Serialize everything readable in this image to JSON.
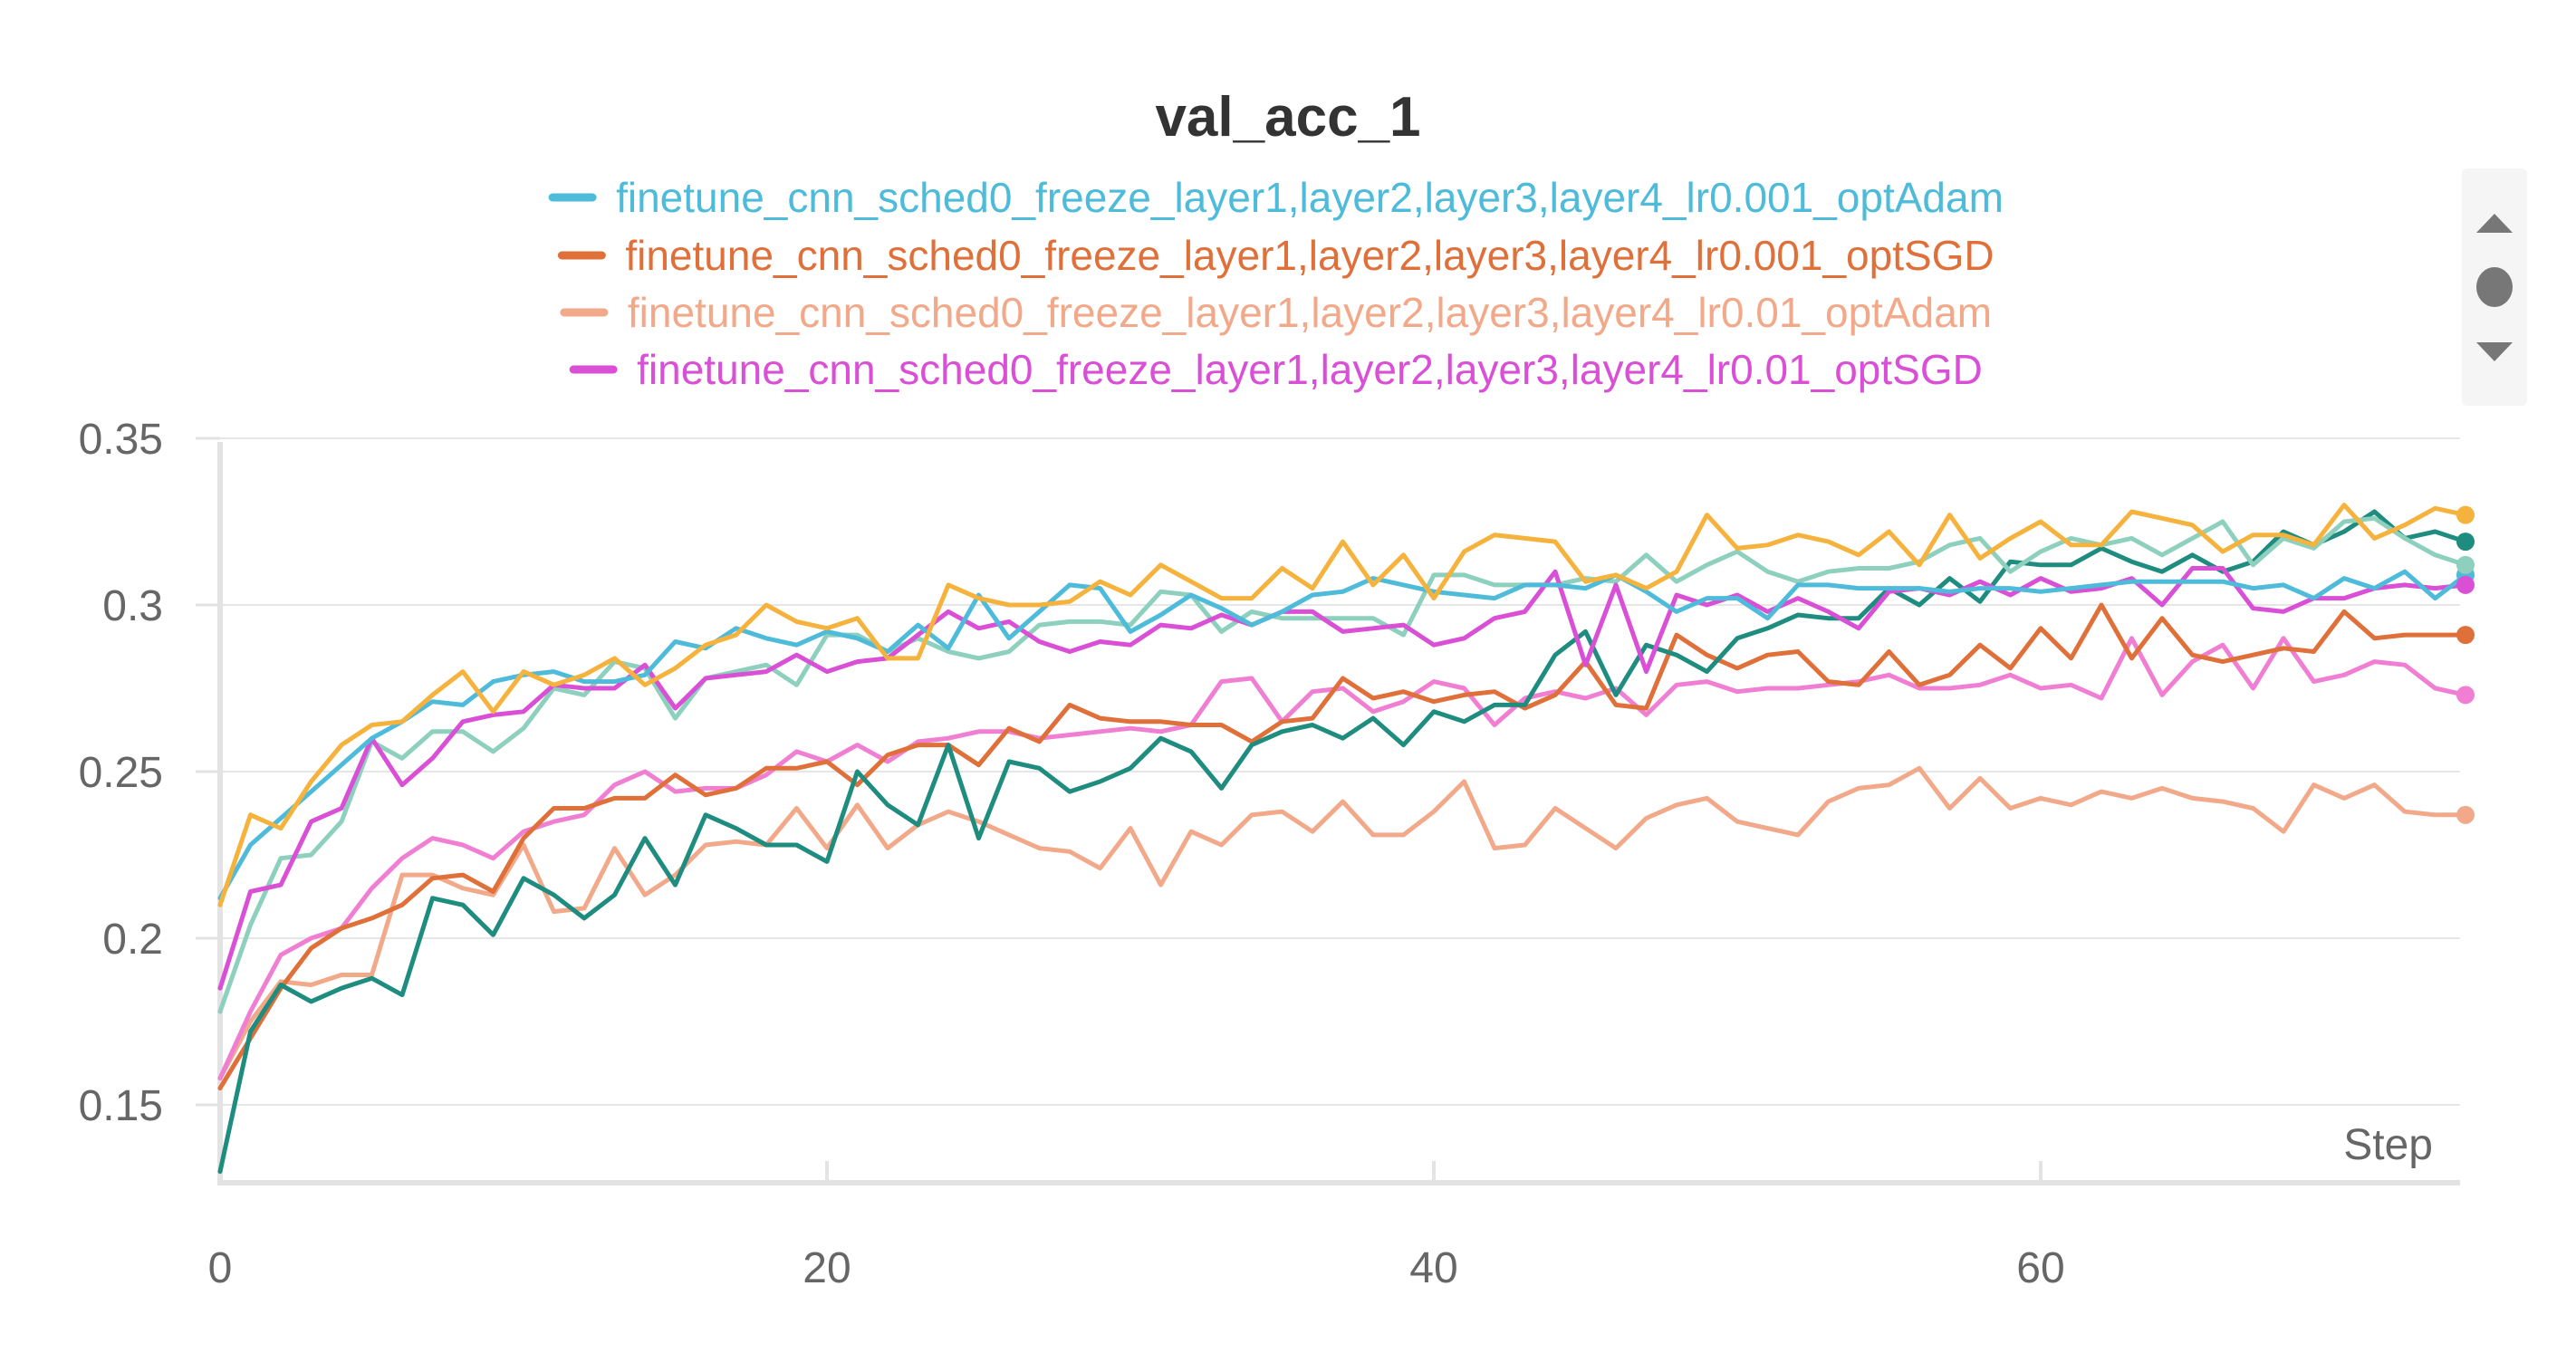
{
  "chart_data": {
    "type": "line",
    "title": "val_acc_1",
    "xlabel": "Step",
    "ylabel": "",
    "xlim": [
      0,
      74
    ],
    "ylim": [
      0.125,
      0.35
    ],
    "xticks": [
      0,
      20,
      40,
      60
    ],
    "yticks": [
      0.15,
      0.2,
      0.25,
      0.3,
      0.35
    ],
    "xtick_labels": [
      "0",
      "20",
      "40",
      "60"
    ],
    "ytick_labels": [
      "0.15",
      "0.2",
      "0.25",
      "0.3",
      "0.35"
    ],
    "grid": true,
    "legend_position": "top",
    "legend": [
      {
        "label": "finetune_cnn_sched0_freeze_layer1,layer2,layer3,layer4_lr0.001_optAdam",
        "color": "#4dbbd9"
      },
      {
        "label": "finetune_cnn_sched0_freeze_layer1,layer2,layer3,layer4_lr0.001_optSGD",
        "color": "#e0703a"
      },
      {
        "label": "finetune_cnn_sched0_freeze_layer1,layer2,layer3,layer4_lr0.01_optAdam",
        "color": "#f2a98a"
      },
      {
        "label": "finetune_cnn_sched0_freeze_layer1,layer2,layer3,layer4_lr0.01_optSGD",
        "color": "#d94fd6"
      }
    ],
    "series": [
      {
        "name": "finetune_cnn_sched0_freeze_layer1,layer2,layer3,layer4_lr0.001_optAdam",
        "color": "#4dbbd9",
        "values": [
          0.212,
          0.228,
          0.236,
          0.244,
          0.252,
          0.26,
          0.265,
          0.271,
          0.27,
          0.277,
          0.279,
          0.28,
          0.277,
          0.277,
          0.279,
          0.289,
          0.287,
          0.293,
          0.29,
          0.288,
          0.292,
          0.29,
          0.286,
          0.294,
          0.287,
          0.303,
          0.29,
          0.298,
          0.306,
          0.305,
          0.292,
          0.297,
          0.303,
          0.299,
          0.294,
          0.298,
          0.303,
          0.304,
          0.308,
          0.306,
          0.304,
          0.303,
          0.302,
          0.306,
          0.306,
          0.305,
          0.309,
          0.304,
          0.298,
          0.302,
          0.302,
          0.296,
          0.306,
          0.306,
          0.305,
          0.305,
          0.305,
          0.304,
          0.305,
          0.305,
          0.304,
          0.305,
          0.306,
          0.307,
          0.307,
          0.307,
          0.307,
          0.305,
          0.306,
          0.302,
          0.308,
          0.305,
          0.31,
          0.302,
          0.309
        ]
      },
      {
        "name": "finetune_cnn_sched0_freeze_layer1,layer2,layer3,layer4_lr0.001_optSGD",
        "color": "#e0703a",
        "values": [
          0.155,
          0.17,
          0.185,
          0.197,
          0.203,
          0.206,
          0.21,
          0.218,
          0.219,
          0.214,
          0.23,
          0.239,
          0.239,
          0.242,
          0.242,
          0.249,
          0.243,
          0.245,
          0.251,
          0.251,
          0.253,
          0.246,
          0.255,
          0.258,
          0.258,
          0.252,
          0.263,
          0.259,
          0.27,
          0.266,
          0.265,
          0.265,
          0.264,
          0.264,
          0.259,
          0.265,
          0.266,
          0.278,
          0.272,
          0.274,
          0.271,
          0.273,
          0.274,
          0.269,
          0.273,
          0.283,
          0.27,
          0.269,
          0.291,
          0.285,
          0.281,
          0.285,
          0.286,
          0.277,
          0.276,
          0.286,
          0.276,
          0.279,
          0.288,
          0.281,
          0.293,
          0.284,
          0.3,
          0.284,
          0.296,
          0.285,
          0.283,
          0.285,
          0.287,
          0.286,
          0.298,
          0.29,
          0.291,
          0.291,
          0.291
        ]
      },
      {
        "name": "finetune_cnn_sched0_freeze_layer1,layer2,layer3,layer4_lr0.01_optAdam",
        "color": "#f2a98a",
        "values": [
          0.158,
          0.175,
          0.187,
          0.186,
          0.189,
          0.189,
          0.219,
          0.219,
          0.215,
          0.213,
          0.228,
          0.208,
          0.209,
          0.227,
          0.213,
          0.219,
          0.228,
          0.229,
          0.228,
          0.239,
          0.227,
          0.24,
          0.227,
          0.234,
          0.238,
          0.235,
          0.231,
          0.227,
          0.226,
          0.221,
          0.233,
          0.216,
          0.232,
          0.228,
          0.237,
          0.238,
          0.232,
          0.241,
          0.231,
          0.231,
          0.238,
          0.247,
          0.227,
          0.228,
          0.239,
          0.233,
          0.227,
          0.236,
          0.24,
          0.242,
          0.235,
          0.233,
          0.231,
          0.241,
          0.245,
          0.246,
          0.251,
          0.239,
          0.248,
          0.239,
          0.242,
          0.24,
          0.244,
          0.242,
          0.245,
          0.242,
          0.241,
          0.239,
          0.232,
          0.246,
          0.242,
          0.246,
          0.238,
          0.237,
          0.237
        ]
      },
      {
        "name": "finetune_cnn_sched0_freeze_layer1,layer2,layer3,layer4_lr0.01_optSGD",
        "color": "#d94fd6",
        "values": [
          0.185,
          0.214,
          0.216,
          0.235,
          0.239,
          0.26,
          0.246,
          0.254,
          0.265,
          0.267,
          0.268,
          0.276,
          0.275,
          0.275,
          0.282,
          0.269,
          0.278,
          0.279,
          0.28,
          0.285,
          0.28,
          0.283,
          0.284,
          0.291,
          0.298,
          0.293,
          0.295,
          0.289,
          0.286,
          0.289,
          0.288,
          0.294,
          0.293,
          0.297,
          0.294,
          0.298,
          0.298,
          0.292,
          0.293,
          0.294,
          0.288,
          0.29,
          0.296,
          0.298,
          0.31,
          0.282,
          0.306,
          0.28,
          0.303,
          0.3,
          0.303,
          0.298,
          0.302,
          0.298,
          0.293,
          0.304,
          0.305,
          0.303,
          0.307,
          0.303,
          0.308,
          0.304,
          0.305,
          0.308,
          0.3,
          0.311,
          0.311,
          0.299,
          0.298,
          0.302,
          0.302,
          0.305,
          0.306,
          0.305,
          0.306
        ]
      },
      {
        "name": "",
        "color": "#f5b23c",
        "values": [
          0.21,
          0.237,
          0.233,
          0.247,
          0.258,
          0.264,
          0.265,
          0.273,
          0.28,
          0.268,
          0.28,
          0.276,
          0.279,
          0.284,
          0.276,
          0.281,
          0.288,
          0.291,
          0.3,
          0.295,
          0.293,
          0.296,
          0.284,
          0.284,
          0.306,
          0.302,
          0.3,
          0.3,
          0.301,
          0.307,
          0.303,
          0.312,
          0.307,
          0.302,
          0.302,
          0.311,
          0.305,
          0.319,
          0.306,
          0.315,
          0.302,
          0.316,
          0.321,
          0.32,
          0.319,
          0.307,
          0.309,
          0.305,
          0.31,
          0.327,
          0.317,
          0.318,
          0.321,
          0.319,
          0.315,
          0.322,
          0.312,
          0.327,
          0.314,
          0.32,
          0.325,
          0.318,
          0.318,
          0.328,
          0.326,
          0.324,
          0.316,
          0.321,
          0.321,
          0.318,
          0.33,
          0.32,
          0.324,
          0.329,
          0.327
        ]
      },
      {
        "name": "",
        "color": "#1e8c7e",
        "values": [
          0.13,
          0.172,
          0.186,
          0.181,
          0.185,
          0.188,
          0.183,
          0.212,
          0.21,
          0.201,
          0.218,
          0.213,
          0.206,
          0.213,
          0.23,
          0.216,
          0.237,
          0.233,
          0.228,
          0.228,
          0.223,
          0.25,
          0.24,
          0.234,
          0.258,
          0.23,
          0.253,
          0.251,
          0.244,
          0.247,
          0.251,
          0.26,
          0.256,
          0.245,
          0.258,
          0.262,
          0.264,
          0.26,
          0.266,
          0.258,
          0.268,
          0.265,
          0.27,
          0.27,
          0.285,
          0.292,
          0.273,
          0.288,
          0.285,
          0.28,
          0.29,
          0.293,
          0.297,
          0.296,
          0.296,
          0.305,
          0.3,
          0.308,
          0.301,
          0.313,
          0.312,
          0.312,
          0.317,
          0.313,
          0.31,
          0.315,
          0.31,
          0.313,
          0.322,
          0.318,
          0.322,
          0.328,
          0.32,
          0.322,
          0.319
        ]
      },
      {
        "name": "",
        "color": "#8dd0bd",
        "values": [
          0.178,
          0.204,
          0.224,
          0.225,
          0.235,
          0.259,
          0.254,
          0.262,
          0.262,
          0.256,
          0.263,
          0.275,
          0.273,
          0.283,
          0.281,
          0.266,
          0.278,
          0.28,
          0.282,
          0.276,
          0.291,
          0.291,
          0.286,
          0.29,
          0.286,
          0.284,
          0.286,
          0.294,
          0.295,
          0.295,
          0.294,
          0.304,
          0.303,
          0.292,
          0.298,
          0.296,
          0.296,
          0.296,
          0.296,
          0.291,
          0.309,
          0.309,
          0.306,
          0.306,
          0.306,
          0.308,
          0.307,
          0.315,
          0.307,
          0.312,
          0.316,
          0.31,
          0.307,
          0.31,
          0.311,
          0.311,
          0.313,
          0.318,
          0.32,
          0.31,
          0.316,
          0.32,
          0.318,
          0.32,
          0.315,
          0.32,
          0.325,
          0.312,
          0.32,
          0.317,
          0.325,
          0.326,
          0.32,
          0.315,
          0.312
        ]
      },
      {
        "name": "",
        "color": "#f07fd3",
        "values": [
          0.158,
          0.178,
          0.195,
          0.2,
          0.203,
          0.215,
          0.224,
          0.23,
          0.228,
          0.224,
          0.232,
          0.235,
          0.237,
          0.246,
          0.25,
          0.244,
          0.245,
          0.245,
          0.249,
          0.256,
          0.253,
          0.258,
          0.253,
          0.259,
          0.26,
          0.262,
          0.262,
          0.26,
          0.261,
          0.262,
          0.263,
          0.262,
          0.264,
          0.277,
          0.278,
          0.265,
          0.274,
          0.275,
          0.268,
          0.271,
          0.277,
          0.275,
          0.264,
          0.272,
          0.274,
          0.272,
          0.275,
          0.267,
          0.276,
          0.277,
          0.274,
          0.275,
          0.275,
          0.276,
          0.277,
          0.279,
          0.275,
          0.275,
          0.276,
          0.279,
          0.275,
          0.276,
          0.272,
          0.29,
          0.273,
          0.283,
          0.288,
          0.275,
          0.29,
          0.277,
          0.279,
          0.283,
          0.282,
          0.275,
          0.273
        ]
      }
    ]
  },
  "legend_scroll": {
    "up_icon": "triangle-up-icon",
    "thumb_icon": "circle-icon",
    "down_icon": "triangle-down-icon",
    "track_color": "#f5f5f5",
    "icon_color": "#777777"
  }
}
